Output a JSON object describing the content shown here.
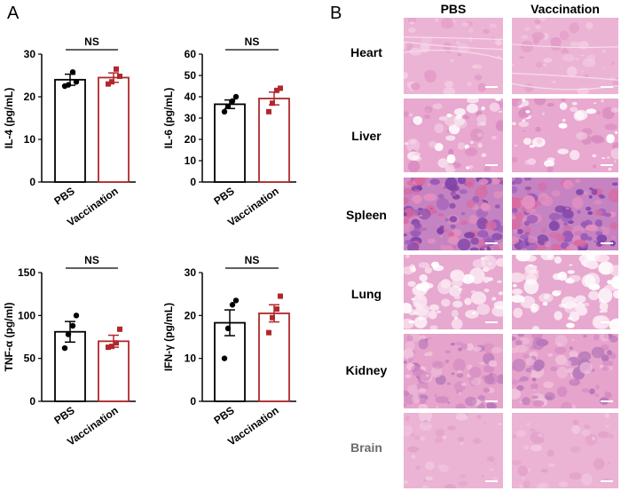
{
  "panels": {
    "left_letter": "A",
    "right_letter": "B"
  },
  "colors": {
    "pbs": "#000000",
    "vaccination": "#b0282c",
    "he_pink": "#e7a6cd",
    "he_purple": "#8a4fb0"
  },
  "chart_data": [
    {
      "type": "bar",
      "id": "il4",
      "ylabel": "IL-4 (pg/mL)",
      "categories": [
        "PBS",
        "Vaccination"
      ],
      "ylim": [
        0,
        30
      ],
      "yticks": [
        "0",
        "10",
        "20",
        "30"
      ],
      "significance": "NS",
      "means": [
        24.0,
        24.5
      ],
      "sem": [
        1.3,
        1.1
      ],
      "points": [
        [
          22.5,
          22.8,
          25.8,
          23.5
        ],
        [
          23.0,
          23.5,
          26.5,
          24.8
        ]
      ]
    },
    {
      "type": "bar",
      "id": "il6",
      "ylabel": "IL-6 (pg/mL)",
      "categories": [
        "PBS",
        "Vaccination"
      ],
      "ylim": [
        0,
        60
      ],
      "yticks": [
        "0",
        "10",
        "20",
        "30",
        "40",
        "50",
        "60"
      ],
      "significance": "NS",
      "means": [
        36.5,
        39.2
      ],
      "sem": [
        2.0,
        3.0
      ],
      "points": [
        [
          33.0,
          35.5,
          38.0,
          40.0
        ],
        [
          33.0,
          37.0,
          43.0,
          44.0
        ]
      ]
    },
    {
      "type": "bar",
      "id": "tnfa",
      "ylabel": "TNF-α (pg/ml)",
      "categories": [
        "PBS",
        "Vaccination"
      ],
      "ylim": [
        0,
        150
      ],
      "yticks": [
        "0",
        "50",
        "100",
        "150"
      ],
      "significance": "NS",
      "means": [
        81,
        70
      ],
      "sem": [
        12,
        7
      ],
      "points": [
        [
          62,
          78,
          88,
          100
        ],
        [
          63,
          64,
          68,
          84
        ]
      ]
    },
    {
      "type": "bar",
      "id": "ifng",
      "ylabel": "IFN-γ (pg/mL)",
      "categories": [
        "PBS",
        "Vaccination"
      ],
      "ylim": [
        0,
        30
      ],
      "yticks": [
        "0",
        "10",
        "20",
        "30"
      ],
      "significance": "NS",
      "means": [
        18.3,
        20.5
      ],
      "sem": [
        3.0,
        2.0
      ],
      "points": [
        [
          10.0,
          17.0,
          22.5,
          23.5
        ],
        [
          16.0,
          19.5,
          21.5,
          24.5
        ]
      ]
    }
  ],
  "histology": {
    "columns": [
      "PBS",
      "Vaccination"
    ],
    "rows": [
      {
        "label": "Heart",
        "style": "heart"
      },
      {
        "label": "Liver",
        "style": "liver"
      },
      {
        "label": "Spleen",
        "style": "spleen"
      },
      {
        "label": "Lung",
        "style": "lung"
      },
      {
        "label": "Kidney",
        "style": "kidney"
      },
      {
        "label": "Brain",
        "style": "brain"
      }
    ]
  }
}
